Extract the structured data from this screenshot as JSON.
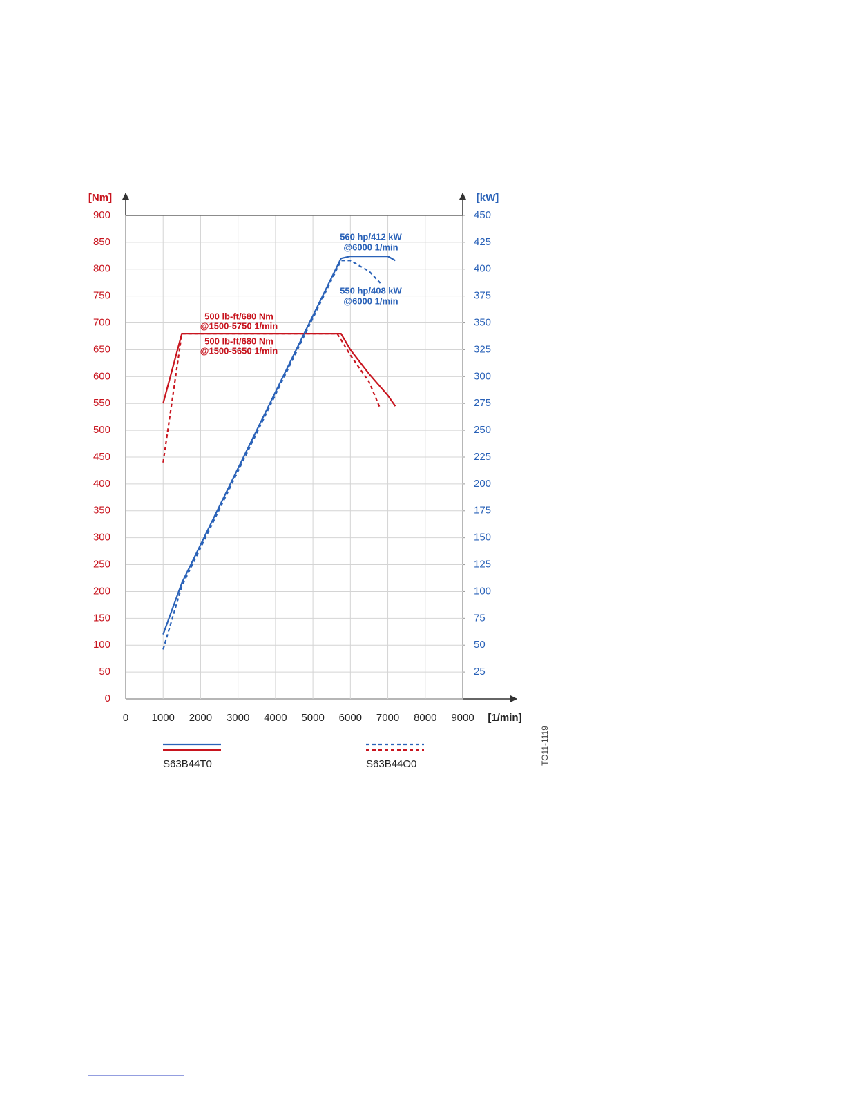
{
  "chart_data": {
    "type": "line",
    "y_label": "[Nm]",
    "y2_label": "[kW]",
    "x_label": "[1/min]",
    "xlim": [
      0,
      9000
    ],
    "xticks": [
      0,
      1000,
      2000,
      3000,
      4000,
      5000,
      6000,
      7000,
      8000,
      9000
    ],
    "ylim": [
      0,
      900
    ],
    "yticks": [
      0,
      50,
      100,
      150,
      200,
      250,
      300,
      350,
      400,
      450,
      500,
      550,
      600,
      650,
      700,
      750,
      800,
      850,
      900
    ],
    "y2lim": [
      0,
      450
    ],
    "y2ticks": [
      25,
      50,
      75,
      100,
      125,
      150,
      175,
      200,
      225,
      250,
      275,
      300,
      325,
      350,
      375,
      400,
      425,
      450
    ],
    "grid": true,
    "y_color": "#c8141e",
    "y2_color": "#2a62b8",
    "series": [
      {
        "name": "S63B44T0",
        "style": "solid",
        "power": {
          "color": "#2a62b8",
          "axis": "y2",
          "x": [
            1000,
            1500,
            5750,
            6000,
            7000,
            7200
          ],
          "values": [
            60,
            108,
            410,
            412,
            412,
            408
          ]
        },
        "torque": {
          "color": "#c8141e",
          "x": [
            1000,
            1500,
            5750,
            6000,
            6500,
            7000,
            7200
          ],
          "values": [
            550,
            680,
            680,
            650,
            605,
            565,
            545
          ]
        }
      },
      {
        "name": "S63B44O0",
        "style": "dashed",
        "power": {
          "color": "#2a62b8",
          "axis": "y2",
          "x": [
            1000,
            1500,
            5750,
            6000,
            6500,
            6800
          ],
          "values": [
            46,
            105,
            408,
            408,
            398,
            387
          ]
        },
        "torque": {
          "color": "#c8141e",
          "x": [
            1000,
            1500,
            5650,
            6000,
            6500,
            6800
          ],
          "values": [
            440,
            680,
            680,
            640,
            590,
            540
          ]
        }
      }
    ],
    "annotations": [
      {
        "text": "560 hp/412 kW",
        "color": "#2a62b8"
      },
      {
        "text": "@6000 1/min",
        "color": "#2a62b8"
      },
      {
        "text": "550 hp/408 kW",
        "color": "#2a62b8"
      },
      {
        "text": "@6000 1/min",
        "color": "#2a62b8"
      },
      {
        "text": "500 lb-ft/680 Nm",
        "color": "#c8141e"
      },
      {
        "text": "@1500-5750 1/min",
        "color": "#c8141e"
      },
      {
        "text": "500 lb-ft/680 Nm",
        "color": "#c8141e"
      },
      {
        "text": "@1500-5650 1/min",
        "color": "#c8141e"
      }
    ],
    "figure_code": "TO11-1119"
  }
}
